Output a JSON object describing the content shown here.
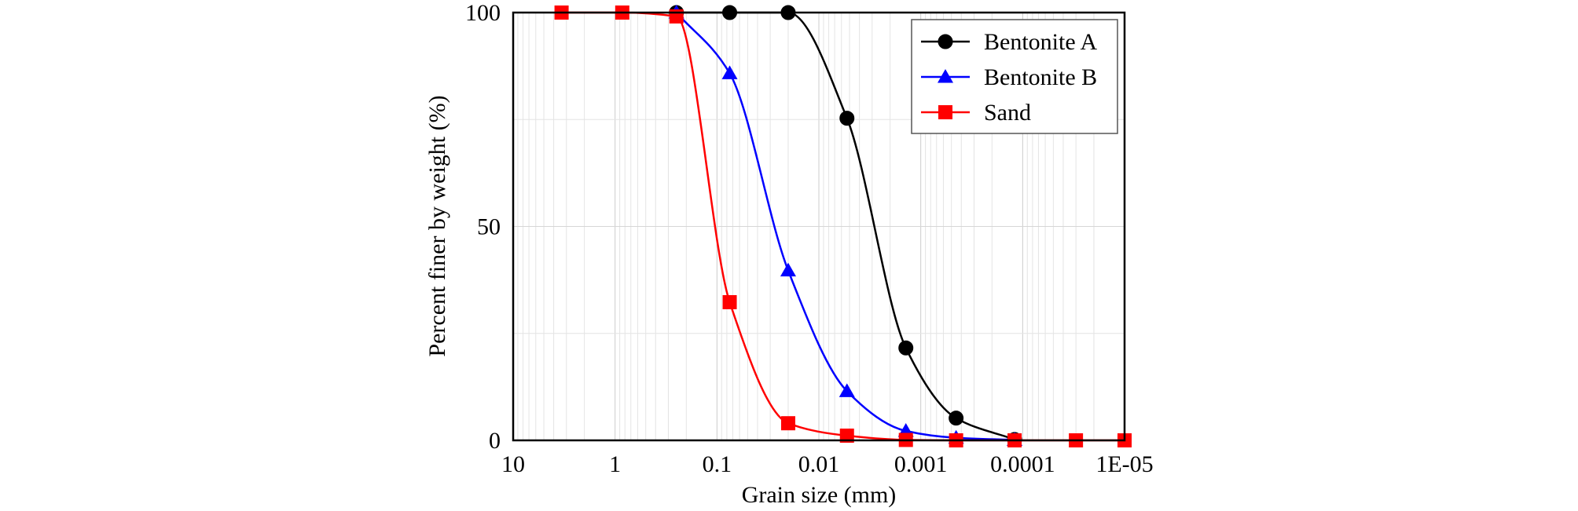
{
  "chart_data": {
    "type": "line",
    "title": "",
    "xlabel": "Grain size (mm)",
    "ylabel": "Percent finer by weight (%)",
    "x_scale": "log",
    "x_reversed": true,
    "xlim": [
      10,
      1e-05
    ],
    "ylim": [
      0,
      100
    ],
    "x_tick_labels": [
      "10",
      "1",
      "0.1",
      "0.01",
      "0.001",
      "0.0001",
      "1E-05"
    ],
    "x_tick_values": [
      10,
      1,
      0.1,
      0.01,
      0.001,
      0.0001,
      1e-05
    ],
    "y_tick_labels": [
      "0",
      "50",
      "100"
    ],
    "y_tick_values": [
      0,
      50,
      100
    ],
    "grid": true,
    "legend_position": "top-right",
    "series": [
      {
        "name": "Bentonite A",
        "color": "#000000",
        "marker": "circle",
        "x": [
          0.25,
          0.075,
          0.02,
          0.0053,
          0.0014,
          0.00045,
          0.00012
        ],
        "y": [
          100,
          100,
          100,
          75.3,
          21.6,
          5.2,
          0.2
        ]
      },
      {
        "name": "Bentonite B",
        "color": "#0000ff",
        "marker": "triangle",
        "x": [
          0.25,
          0.075,
          0.02,
          0.0053,
          0.0014,
          0.00045,
          0.00012
        ],
        "y": [
          100,
          85.8,
          39.7,
          11.5,
          2.2,
          0.6,
          0.1
        ]
      },
      {
        "name": "Sand",
        "color": "#ff0000",
        "marker": "square",
        "x": [
          3.35,
          0.85,
          0.25,
          0.075,
          0.02,
          0.0053,
          0.0014,
          0.00045,
          0.00012,
          3e-05,
          1e-05
        ],
        "y": [
          100,
          100,
          99.1,
          32.3,
          4.0,
          1.1,
          0.1,
          0,
          0,
          0,
          0
        ]
      }
    ]
  }
}
